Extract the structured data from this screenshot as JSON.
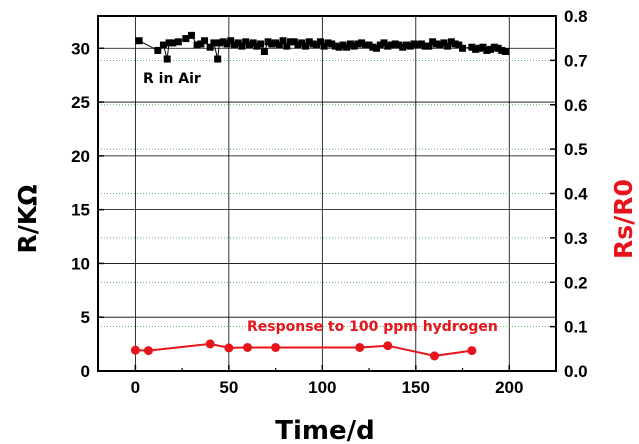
{
  "chart_data": {
    "type": "scatter",
    "title": "",
    "xlabel": "Time/d",
    "ylabel": "R/KΩ",
    "ylabel_right": "Rs/R0",
    "xlim": [
      -20,
      225
    ],
    "ylim": [
      0,
      33
    ],
    "ylim_right": [
      0,
      0.8
    ],
    "x_ticks": [
      "0",
      "50",
      "100",
      "150",
      "200"
    ],
    "y_ticks": [
      "0",
      "5",
      "10",
      "15",
      "20",
      "25",
      "30"
    ],
    "y_ticks_right": [
      "0.0",
      "0.1",
      "0.2",
      "0.3",
      "0.4",
      "0.5",
      "0.6",
      "0.7",
      "0.8"
    ],
    "grid": true,
    "colors": {
      "left_axis": "#000000",
      "right_axis": "#e8141c",
      "series_air": "#000000",
      "series_response": "#e8141c",
      "grid_dotted": "#3a9a3a"
    },
    "annotations": [
      {
        "text": "R in Air",
        "series": "R in Air"
      },
      {
        "text": "Response to 100 ppm hydrogen",
        "series": "Response to 100 ppm hydrogen"
      }
    ],
    "series": [
      {
        "name": "R in Air",
        "axis": "left",
        "marker": "square",
        "x": [
          2,
          12,
          15,
          17,
          18,
          20,
          23,
          27,
          30,
          33,
          35,
          37,
          40,
          42,
          44,
          45,
          47,
          49,
          51,
          53,
          55,
          57,
          59,
          61,
          63,
          65,
          67,
          69,
          71,
          73,
          75,
          77,
          79,
          81,
          83,
          85,
          87,
          89,
          91,
          93,
          95,
          97,
          99,
          101,
          103,
          105,
          107,
          109,
          111,
          113,
          115,
          117,
          119,
          121,
          123,
          125,
          127,
          129,
          131,
          133,
          135,
          137,
          139,
          141,
          143,
          145,
          147,
          149,
          151,
          153,
          155,
          157,
          159,
          161,
          163,
          165,
          167,
          169,
          171,
          173,
          175,
          180,
          182,
          184,
          186,
          188,
          190,
          192,
          194,
          196,
          198
        ],
        "y": [
          30.7,
          29.8,
          30.3,
          29.0,
          30.5,
          30.5,
          30.6,
          30.9,
          31.2,
          30.3,
          30.4,
          30.7,
          30.1,
          30.5,
          29.0,
          30.5,
          30.6,
          30.4,
          30.7,
          30.3,
          30.5,
          30.2,
          30.6,
          30.3,
          30.5,
          30.2,
          30.4,
          29.7,
          30.6,
          30.4,
          30.5,
          30.3,
          30.7,
          30.2,
          30.6,
          30.6,
          30.3,
          30.5,
          30.2,
          30.6,
          30.4,
          30.3,
          30.6,
          30.2,
          30.5,
          30.4,
          30.2,
          30.1,
          30.3,
          30.1,
          30.4,
          30.2,
          30.4,
          30.5,
          30.3,
          30.3,
          30.1,
          30.0,
          30.3,
          30.5,
          30.2,
          30.3,
          30.4,
          30.3,
          30.1,
          30.3,
          30.2,
          30.4,
          30.3,
          30.4,
          30.2,
          30.2,
          30.6,
          30.4,
          30.3,
          30.5,
          30.2,
          30.6,
          30.4,
          30.3,
          30.0,
          30.1,
          29.9,
          30.0,
          30.1,
          29.8,
          29.9,
          30.1,
          30.0,
          29.8,
          29.7
        ]
      },
      {
        "name": "Response to 100 ppm hydrogen",
        "axis": "right",
        "marker": "circle",
        "x": [
          0,
          7,
          40,
          50,
          60,
          75,
          120,
          135,
          160,
          180
        ],
        "y": [
          0.047,
          0.046,
          0.061,
          0.052,
          0.053,
          0.053,
          0.053,
          0.057,
          0.034,
          0.046
        ]
      }
    ]
  }
}
